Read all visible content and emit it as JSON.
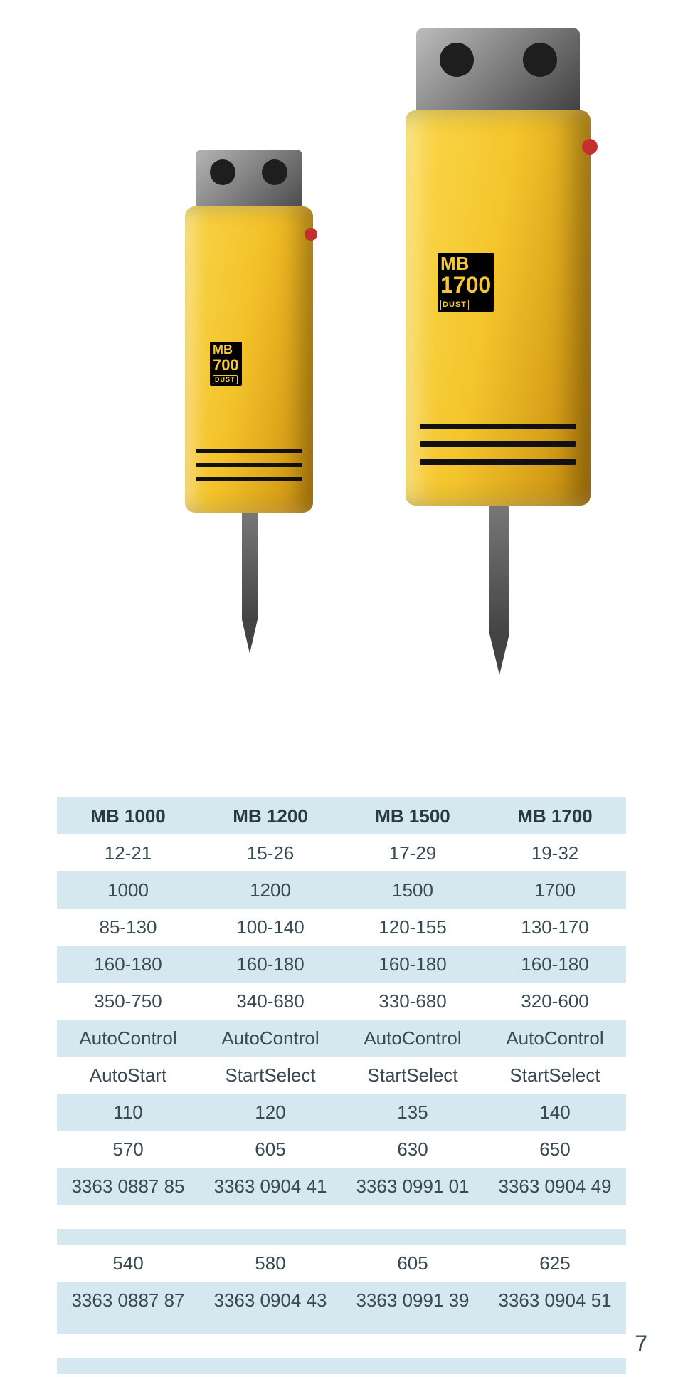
{
  "page_number": "7",
  "colors": {
    "band": "#d6e8ef",
    "text": "#3a4a52",
    "header_text": "#2b3a42",
    "breaker_yellow_light": "#f8cf3e",
    "breaker_yellow_dark": "#d39a12",
    "breaker_top_grey_light": "#9a9a9a",
    "breaker_top_grey_dark": "#4a4a4a",
    "lug_hole": "#1e1e1e",
    "chisel_grey": "#6a6a6a",
    "sidecap_red": "#c43030",
    "label_bg": "#000000",
    "label_fg": "#f2c733"
  },
  "products": {
    "small": {
      "line1": "MB",
      "line2": "700",
      "line3": "DUST"
    },
    "large": {
      "line1": "MB",
      "line2": "1700",
      "line3": "DUST"
    }
  },
  "table": {
    "headers": [
      "MB 1000",
      "MB 1200",
      "MB 1500",
      "MB 1700"
    ],
    "section1_rows": [
      {
        "band": false,
        "cells": [
          "12-21",
          "15-26",
          "17-29",
          "19-32"
        ]
      },
      {
        "band": true,
        "cells": [
          "1000",
          "1200",
          "1500",
          "1700"
        ]
      },
      {
        "band": false,
        "cells": [
          "85-130",
          "100-140",
          "120-155",
          "130-170"
        ]
      },
      {
        "band": true,
        "cells": [
          "160-180",
          "160-180",
          "160-180",
          "160-180"
        ]
      },
      {
        "band": false,
        "cells": [
          "350-750",
          "340-680",
          "330-680",
          "320-600"
        ]
      },
      {
        "band": true,
        "cells": [
          "AutoControl",
          "AutoControl",
          "AutoControl",
          "AutoControl"
        ]
      },
      {
        "band": false,
        "cells": [
          "AutoStart",
          "StartSelect",
          "StartSelect",
          "StartSelect"
        ]
      },
      {
        "band": true,
        "cells": [
          "110",
          "120",
          "135",
          "140"
        ]
      },
      {
        "band": false,
        "cells": [
          "570",
          "605",
          "630",
          "650"
        ]
      },
      {
        "band": true,
        "cells": [
          "3363 0887 85",
          "3363 0904 41",
          "3363 0991 01",
          "3363 0904 49"
        ]
      }
    ],
    "section2_rows": [
      {
        "band": false,
        "cells": [
          "540",
          "580",
          "605",
          "625"
        ]
      },
      {
        "band": true,
        "cells": [
          "3363 0887 87",
          "3363 0904 43",
          "3363 0991 39",
          "3363 0904 51"
        ]
      }
    ]
  }
}
